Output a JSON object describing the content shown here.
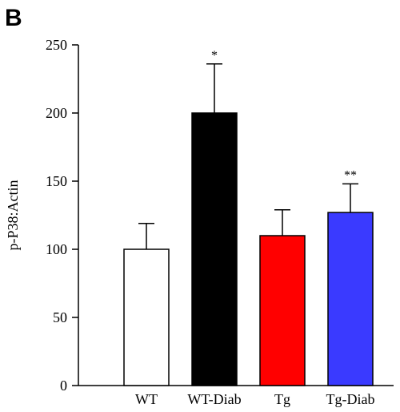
{
  "panel_label": "B",
  "chart_data": {
    "type": "bar",
    "categories": [
      "WT",
      "WT-Diab",
      "Tg",
      "Tg-Diab"
    ],
    "values": [
      100,
      200,
      110,
      127
    ],
    "errors": [
      19,
      36,
      19,
      21
    ],
    "annotations": [
      "",
      "*",
      "",
      "**"
    ],
    "colors": [
      "#ffffff",
      "#000000",
      "#ff0000",
      "#3a3aff"
    ],
    "ylabel": "p-P38:Actin",
    "xlabel": "",
    "ylim": [
      0,
      250
    ],
    "yticks": [
      0,
      50,
      100,
      150,
      200,
      250
    ],
    "grid": false
  }
}
